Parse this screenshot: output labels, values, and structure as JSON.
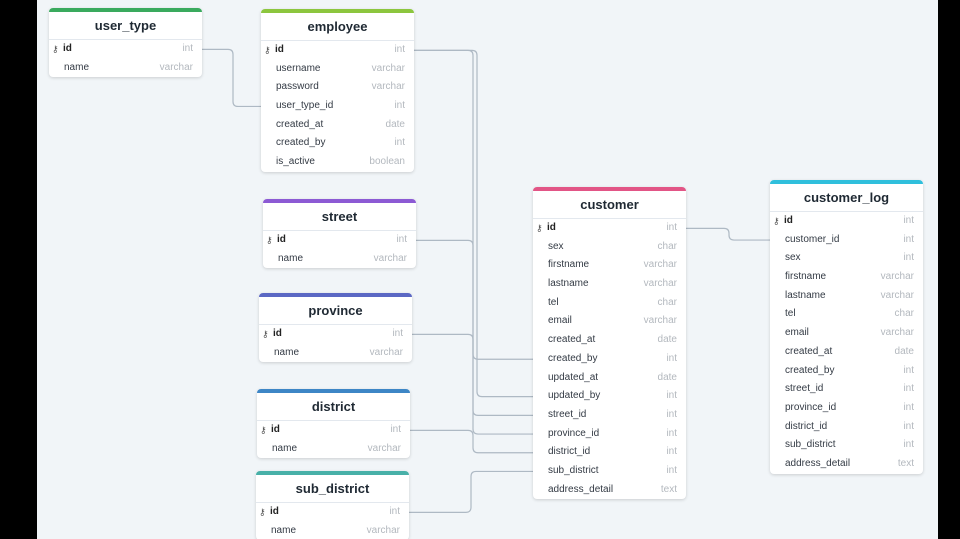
{
  "colors": {
    "user_type": "#3aaa5e",
    "employee": "#8cc63e",
    "street": "#8c5ad4",
    "province": "#5b68c4",
    "district": "#3d86c6",
    "sub_district": "#48b0a8",
    "customer": "#e25586",
    "customer_log": "#2fbfdc",
    "connector": "#aeb9c4"
  },
  "tables": {
    "user_type": {
      "name": "user_type",
      "fields": [
        {
          "name": "id",
          "type": "int",
          "pk": true
        },
        {
          "name": "name",
          "type": "varchar"
        }
      ]
    },
    "employee": {
      "name": "employee",
      "fields": [
        {
          "name": "id",
          "type": "int",
          "pk": true
        },
        {
          "name": "username",
          "type": "varchar"
        },
        {
          "name": "password",
          "type": "varchar"
        },
        {
          "name": "user_type_id",
          "type": "int"
        },
        {
          "name": "created_at",
          "type": "date"
        },
        {
          "name": "created_by",
          "type": "int"
        },
        {
          "name": "is_active",
          "type": "boolean"
        }
      ]
    },
    "street": {
      "name": "street",
      "fields": [
        {
          "name": "id",
          "type": "int",
          "pk": true
        },
        {
          "name": "name",
          "type": "varchar"
        }
      ]
    },
    "province": {
      "name": "province",
      "fields": [
        {
          "name": "id",
          "type": "int",
          "pk": true
        },
        {
          "name": "name",
          "type": "varchar"
        }
      ]
    },
    "district": {
      "name": "district",
      "fields": [
        {
          "name": "id",
          "type": "int",
          "pk": true
        },
        {
          "name": "name",
          "type": "varchar"
        }
      ]
    },
    "sub_district": {
      "name": "sub_district",
      "fields": [
        {
          "name": "id",
          "type": "int",
          "pk": true
        },
        {
          "name": "name",
          "type": "varchar"
        }
      ]
    },
    "customer": {
      "name": "customer",
      "fields": [
        {
          "name": "id",
          "type": "int",
          "pk": true
        },
        {
          "name": "sex",
          "type": "char"
        },
        {
          "name": "firstname",
          "type": "varchar"
        },
        {
          "name": "lastname",
          "type": "varchar"
        },
        {
          "name": "tel",
          "type": "char"
        },
        {
          "name": "email",
          "type": "varchar"
        },
        {
          "name": "created_at",
          "type": "date"
        },
        {
          "name": "created_by",
          "type": "int"
        },
        {
          "name": "updated_at",
          "type": "date"
        },
        {
          "name": "updated_by",
          "type": "int"
        },
        {
          "name": "street_id",
          "type": "int"
        },
        {
          "name": "province_id",
          "type": "int"
        },
        {
          "name": "district_id",
          "type": "int"
        },
        {
          "name": "sub_district",
          "type": "int"
        },
        {
          "name": "address_detail",
          "type": "text"
        }
      ]
    },
    "customer_log": {
      "name": "customer_log",
      "fields": [
        {
          "name": "id",
          "type": "int",
          "pk": true
        },
        {
          "name": "customer_id",
          "type": "int"
        },
        {
          "name": "sex",
          "type": "int"
        },
        {
          "name": "firstname",
          "type": "varchar"
        },
        {
          "name": "lastname",
          "type": "varchar"
        },
        {
          "name": "tel",
          "type": "char"
        },
        {
          "name": "email",
          "type": "varchar"
        },
        {
          "name": "created_at",
          "type": "date"
        },
        {
          "name": "created_by",
          "type": "int"
        },
        {
          "name": "street_id",
          "type": "int"
        },
        {
          "name": "province_id",
          "type": "int"
        },
        {
          "name": "district_id",
          "type": "int"
        },
        {
          "name": "sub_district",
          "type": "int"
        },
        {
          "name": "address_detail",
          "type": "text"
        }
      ]
    }
  },
  "relations": [
    {
      "from": "user_type.id",
      "to": "employee.user_type_id"
    },
    {
      "from": "employee.id",
      "to": "customer.created_by"
    },
    {
      "from": "employee.id",
      "to": "customer.updated_by"
    },
    {
      "from": "street.id",
      "to": "customer.street_id"
    },
    {
      "from": "province.id",
      "to": "customer.province_id"
    },
    {
      "from": "district.id",
      "to": "customer.district_id"
    },
    {
      "from": "sub_district.id",
      "to": "customer.sub_district"
    },
    {
      "from": "customer.id",
      "to": "customer_log.customer_id"
    }
  ]
}
